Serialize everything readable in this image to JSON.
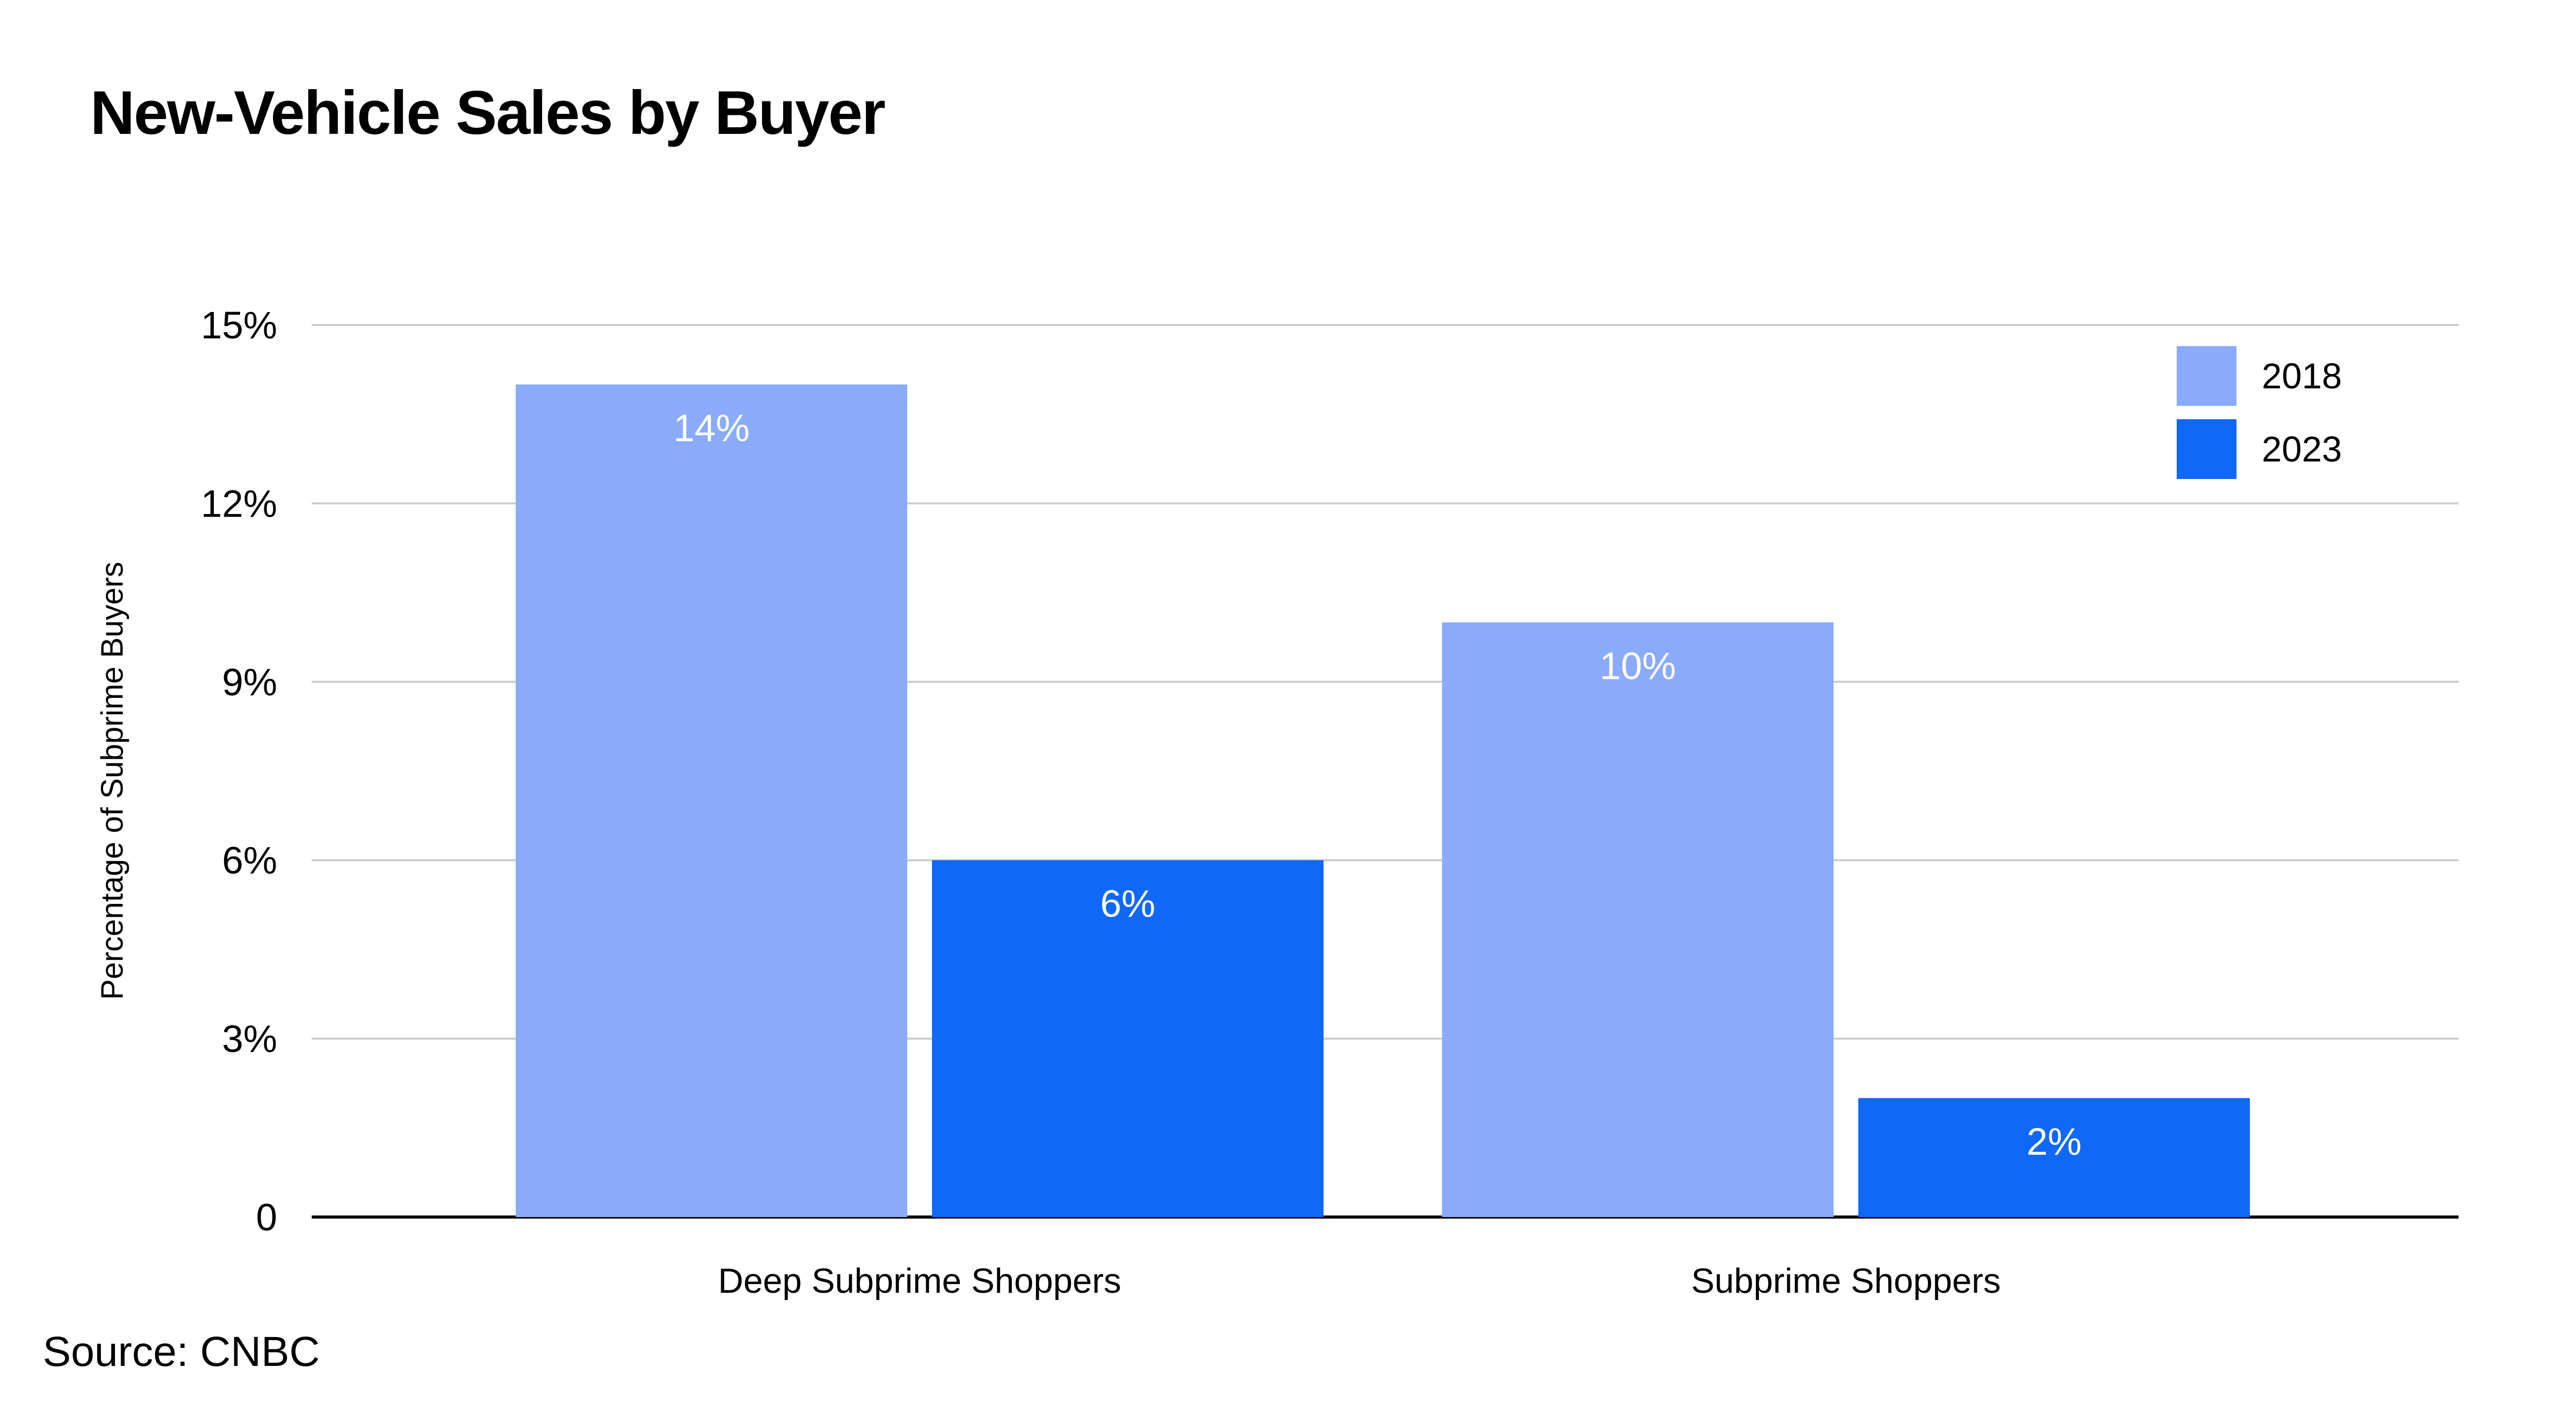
{
  "title": "New-Vehicle Sales by Buyer",
  "source": "Source: CNBC",
  "chart_data": {
    "type": "bar",
    "title": "New-Vehicle Sales by Buyer",
    "xlabel": "",
    "ylabel": "Percentage of Subprime Buyers",
    "categories": [
      "Deep Subprime Shoppers",
      "Subprime Shoppers"
    ],
    "series": [
      {
        "name": "2018",
        "values": [
          14,
          10
        ],
        "labels": [
          "14%",
          "10%"
        ],
        "color": "#8aabfa"
      },
      {
        "name": "2023",
        "values": [
          6,
          2
        ],
        "labels": [
          "6%",
          "2%"
        ],
        "color": "#0f68f7"
      }
    ],
    "ylim": [
      0,
      15
    ],
    "yticks": [
      0,
      3,
      6,
      9,
      12,
      15
    ],
    "ytick_labels": [
      "0",
      "3%",
      "6%",
      "9%",
      "12%",
      "15%"
    ],
    "grid": true,
    "legend": "top-right",
    "colors": {
      "gridline": "#cccccc",
      "axis": "#000000",
      "bar_text": "#ffffff"
    }
  }
}
